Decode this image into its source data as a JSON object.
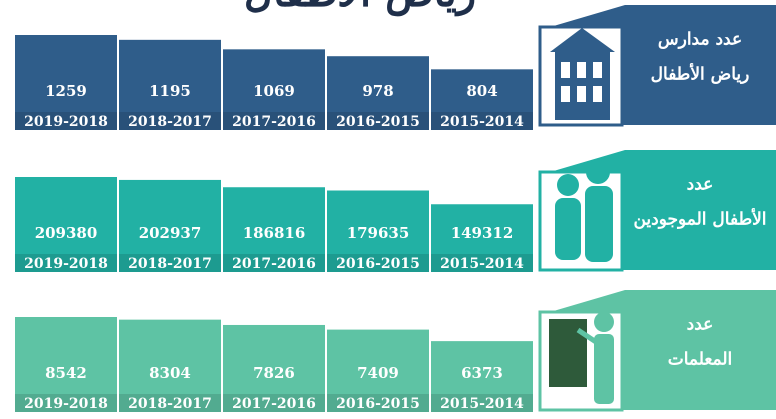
{
  "title": "رياض الأطفال",
  "chart_data": [
    {
      "type": "bar",
      "label": [
        "عدد مدارس",
        "رياض الأطفال"
      ],
      "color": "#2f5d8a",
      "categories": [
        "2015-2014",
        "2016-2015",
        "2017-2016",
        "2018-2017",
        "2019-2018"
      ],
      "values": [
        804,
        978,
        1069,
        1195,
        1259
      ]
    },
    {
      "type": "bar",
      "label": [
        "عدد",
        "الأطفال الموجودين"
      ],
      "color": "#22b1a4",
      "categories": [
        "2015-2014",
        "2016-2015",
        "2017-2016",
        "2018-2017",
        "2019-2018"
      ],
      "values": [
        149312,
        179635,
        186816,
        202937,
        209380
      ]
    },
    {
      "type": "bar",
      "label": [
        "عدد",
        "المعلمات"
      ],
      "color": "#5ec3a4",
      "categories": [
        "2015-2014",
        "2016-2015",
        "2017-2016",
        "2018-2017",
        "2019-2018"
      ],
      "values": [
        6373,
        7409,
        7826,
        8304,
        8542
      ]
    }
  ]
}
